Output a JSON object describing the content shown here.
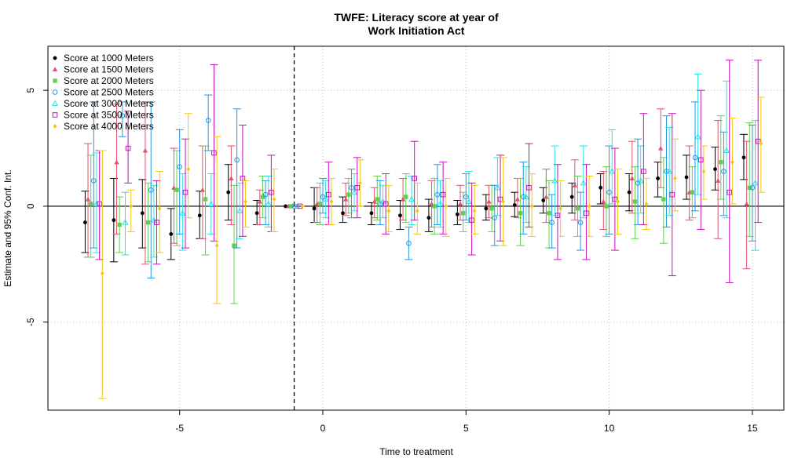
{
  "chart_data": {
    "type": "scatter",
    "title": [
      "TWFE: Literacy score at year of",
      "Work Initiation Act"
    ],
    "xlabel": "Time to treatment",
    "ylabel": "Estimate and 95% Conf. Int.",
    "xlim": [
      -9.6,
      16.1
    ],
    "ylim": [
      -8.8,
      6.9
    ],
    "x_ticks": [
      -5,
      0,
      5,
      10,
      15
    ],
    "y_ticks": [
      -5,
      0,
      5
    ],
    "x_tick_labels": [
      "-5",
      "0",
      "5",
      "10",
      "15"
    ],
    "y_tick_labels": [
      "-5",
      "0",
      "5"
    ],
    "grid": true,
    "reference_line_y": 0,
    "reference_line_x": -1,
    "legend_position": "top-left",
    "x": [
      -8,
      -7,
      -6,
      -5,
      -4,
      -3,
      -2,
      -1,
      0,
      1,
      2,
      3,
      4,
      5,
      6,
      7,
      8,
      9,
      10,
      11,
      12,
      13,
      14,
      15
    ],
    "series": [
      {
        "name": "Score at 1000 Meters",
        "color": "#000000",
        "marker": "dot",
        "offset": -0.3,
        "estimate": [
          -0.7,
          -0.6,
          -0.3,
          -1.2,
          -0.4,
          0.6,
          -0.3,
          0,
          -0.1,
          -0.3,
          -0.3,
          -0.4,
          -0.5,
          -0.35,
          -0.1,
          0.05,
          0.25,
          0.4,
          0.8,
          0.6,
          1.2,
          1.25,
          1.6,
          2.1
        ],
        "ci_low": [
          -2.0,
          -2.4,
          -1.8,
          -2.3,
          -1.4,
          -0.6,
          -0.8,
          0,
          -0.7,
          -0.7,
          -0.8,
          -1.0,
          -1.1,
          -0.8,
          -0.6,
          -0.45,
          -0.3,
          -0.3,
          0.1,
          -0.2,
          0.4,
          0.3,
          0.7,
          1.15
        ],
        "ci_high": [
          0.65,
          1.2,
          1.15,
          -0.1,
          0.65,
          1.8,
          0.25,
          0,
          0.8,
          0.4,
          0.15,
          0.25,
          0.3,
          0.25,
          0.5,
          0.6,
          0.8,
          1.0,
          1.4,
          1.4,
          1.9,
          2.2,
          2.55,
          3.1
        ]
      },
      {
        "name": "Score at 1500 Meters",
        "color": "#DF536B",
        "marker": "triangle",
        "offset": -0.2,
        "estimate": [
          0.3,
          1.9,
          2.4,
          0.8,
          0.7,
          1.2,
          0.2,
          0,
          0.1,
          0.3,
          0.2,
          0.3,
          0.1,
          0.1,
          0.2,
          0.3,
          0.4,
          0.9,
          0.2,
          1.2,
          2.5,
          0.6,
          1.1,
          0.1
        ],
        "ci_low": [
          -2.2,
          -1.2,
          -2.5,
          -1.6,
          -1.4,
          -0.8,
          -0.8,
          0,
          -0.7,
          -0.4,
          -0.5,
          -0.6,
          -0.9,
          -0.6,
          -0.5,
          -0.5,
          -0.7,
          -0.6,
          -1.0,
          -0.3,
          0.8,
          -0.6,
          -1.4,
          -2.7
        ],
        "ci_high": [
          2.7,
          4.4,
          4.5,
          2.5,
          2.6,
          2.6,
          0.7,
          0,
          0.8,
          1.0,
          0.8,
          1.2,
          1.1,
          0.9,
          0.9,
          1.2,
          1.6,
          2.0,
          1.5,
          2.8,
          4.2,
          2.6,
          3.7,
          2.8
        ]
      },
      {
        "name": "Score at 2000 Meters",
        "color": "#61D04F",
        "marker": "square",
        "offset": -0.1,
        "estimate": [
          0.1,
          -0.8,
          -0.7,
          0.7,
          0.3,
          -1.7,
          0.4,
          0,
          0.1,
          0.5,
          0.3,
          0.4,
          0.0,
          -0.3,
          -0.1,
          -0.3,
          -0.3,
          -0.1,
          0.0,
          0.2,
          0.3,
          0.6,
          1.9,
          0.8
        ],
        "ci_low": [
          -2.2,
          -2.0,
          -2.4,
          -1.7,
          -2.1,
          -4.2,
          -0.5,
          0,
          -0.8,
          -0.3,
          -0.6,
          -0.7,
          -1.2,
          -1.1,
          -1.1,
          -1.7,
          -1.8,
          -1.3,
          -1.3,
          -1.4,
          -1.6,
          -0.5,
          0.3,
          -1.3
        ],
        "ci_high": [
          2.2,
          0.4,
          1.0,
          2.4,
          2.6,
          0.9,
          1.3,
          0,
          1.0,
          1.2,
          1.3,
          1.4,
          1.2,
          0.6,
          0.9,
          1.2,
          1.1,
          1.3,
          1.7,
          1.7,
          2.1,
          1.7,
          3.9,
          3.6
        ]
      },
      {
        "name": "Score at 2500 Meters",
        "color": "#2297E6",
        "marker": "circle",
        "offset": 0.0,
        "estimate": [
          1.1,
          3.9,
          0.7,
          1.7,
          3.7,
          2.0,
          0.5,
          0,
          0.4,
          0.8,
          0.1,
          -1.6,
          0.5,
          0.4,
          -0.5,
          0.4,
          -0.7,
          -0.7,
          0.6,
          1.0,
          1.5,
          2.1,
          1.5,
          0.8
        ],
        "ci_low": [
          -1.8,
          3.0,
          -3.1,
          -1.2,
          2.4,
          -1.8,
          -0.8,
          0,
          -0.3,
          -0.5,
          -0.8,
          -2.3,
          -0.8,
          -0.6,
          -1.7,
          -1.2,
          -1.8,
          -1.9,
          -1.2,
          -0.8,
          -0.9,
          -0.2,
          -0.4,
          -1.5
        ],
        "ci_high": [
          4.5,
          4.5,
          4.5,
          3.3,
          4.8,
          4.2,
          1.1,
          0,
          1.2,
          1.6,
          1.1,
          -0.9,
          1.8,
          1.4,
          0.9,
          1.9,
          0.5,
          0.6,
          2.6,
          2.9,
          3.9,
          4.5,
          3.2,
          3.5
        ]
      },
      {
        "name": "Score at 3000 Meters",
        "color": "#28E2E5",
        "marker": "triangle-open",
        "offset": 0.1,
        "estimate": [
          0.1,
          -0.7,
          -0.6,
          -0.3,
          0.1,
          -0.2,
          0.1,
          0,
          0.3,
          0.6,
          0.2,
          0.3,
          0.1,
          0.2,
          0.8,
          0.4,
          1.1,
          1.0,
          1.5,
          1.1,
          1.5,
          3.0,
          2.4,
          1.0
        ],
        "ci_low": [
          -2.0,
          -2.1,
          -2.2,
          -1.9,
          -1.2,
          -1.4,
          -0.9,
          0,
          -0.5,
          -0.2,
          -0.5,
          -0.8,
          -0.9,
          -0.7,
          -0.4,
          -0.7,
          -0.4,
          -0.5,
          0.1,
          -0.3,
          -0.4,
          0.5,
          -0.5,
          -1.9
        ],
        "ci_high": [
          2.3,
          0.6,
          0.9,
          1.4,
          1.4,
          1.0,
          1.3,
          0,
          1.1,
          1.4,
          0.9,
          1.3,
          1.1,
          1.5,
          2.1,
          1.7,
          2.6,
          2.6,
          3.3,
          2.6,
          3.4,
          5.7,
          5.4,
          3.7
        ]
      },
      {
        "name": "Score at 3500 Meters",
        "color": "#CD0BBC",
        "marker": "square-open",
        "offset": 0.2,
        "estimate": [
          0.1,
          2.5,
          -0.7,
          0.6,
          2.3,
          1.2,
          0.6,
          0,
          0.5,
          0.8,
          0.1,
          1.2,
          0.5,
          -0.6,
          0.3,
          0.8,
          -0.4,
          -0.3,
          0.3,
          1.5,
          0.5,
          2.0,
          0.6,
          2.8
        ],
        "ci_low": [
          -2.3,
          1.0,
          -2.5,
          -1.8,
          -1.5,
          -1.3,
          -1.1,
          0,
          -0.8,
          -0.5,
          -1.2,
          -0.6,
          -1.2,
          -2.1,
          -1.5,
          -0.9,
          -2.3,
          -2.3,
          -1.9,
          -0.8,
          -3.0,
          -1.0,
          -3.3,
          -0.7
        ],
        "ci_high": [
          2.4,
          4.1,
          1.1,
          2.9,
          6.1,
          3.5,
          2.2,
          0,
          1.9,
          2.1,
          1.4,
          2.8,
          1.9,
          1.0,
          2.2,
          2.7,
          1.8,
          1.8,
          2.5,
          4.0,
          4.0,
          5.0,
          6.3,
          6.3
        ]
      },
      {
        "name": "Score at 4000 Meters",
        "color": "#F5C710",
        "marker": "diamond",
        "offset": 0.3,
        "estimate": [
          -2.9,
          0.0,
          -0.1,
          1.6,
          -1.7,
          0.2,
          0.3,
          0,
          0.2,
          1.0,
          -0.2,
          -0.2,
          0.0,
          -0.2,
          0.2,
          0.0,
          -0.1,
          0.0,
          0.2,
          0.1,
          1.2,
          1.5,
          1.9,
          2.7
        ],
        "ci_low": [
          -8.3,
          -1.1,
          -2.0,
          -0.5,
          -4.2,
          -0.9,
          -1.1,
          0,
          -0.8,
          0.0,
          -1.1,
          -1.2,
          -1.3,
          -1.2,
          -1.7,
          -1.3,
          -1.3,
          -1.3,
          -1.2,
          -1.0,
          -0.2,
          0.3,
          0.1,
          0.6
        ],
        "ci_high": [
          2.4,
          0.7,
          1.5,
          4.0,
          3.0,
          1.1,
          1.6,
          0,
          1.2,
          2.0,
          0.9,
          1.0,
          1.2,
          0.9,
          2.1,
          1.4,
          1.1,
          1.3,
          1.6,
          1.2,
          2.9,
          2.6,
          3.8,
          4.7
        ]
      }
    ]
  }
}
